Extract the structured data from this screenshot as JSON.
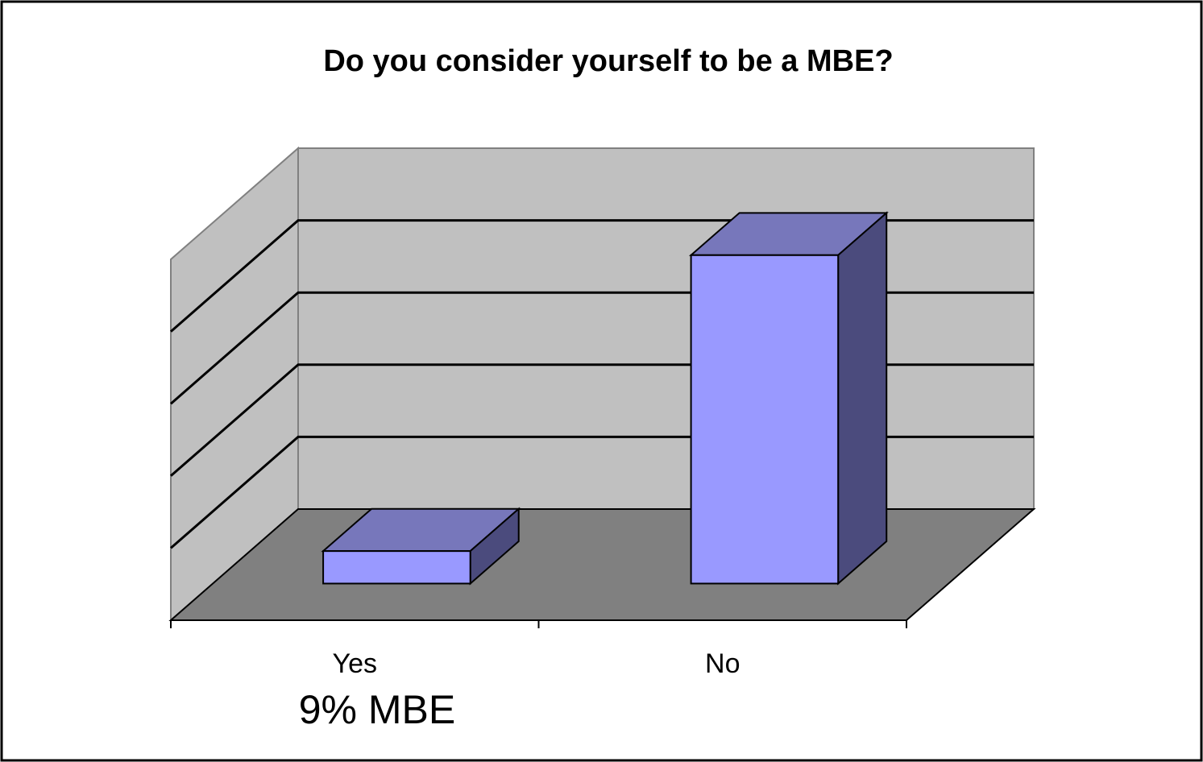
{
  "chart_data": {
    "type": "bar3d",
    "title": "Do you consider yourself to be a MBE?",
    "categories": [
      "Yes",
      "No"
    ],
    "values": [
      9,
      91
    ],
    "annotation": "9% MBE",
    "color": "#9999ff",
    "ylim": [
      0,
      100
    ],
    "yticks": [
      0,
      20,
      40,
      60,
      80,
      100
    ],
    "grid": true
  }
}
